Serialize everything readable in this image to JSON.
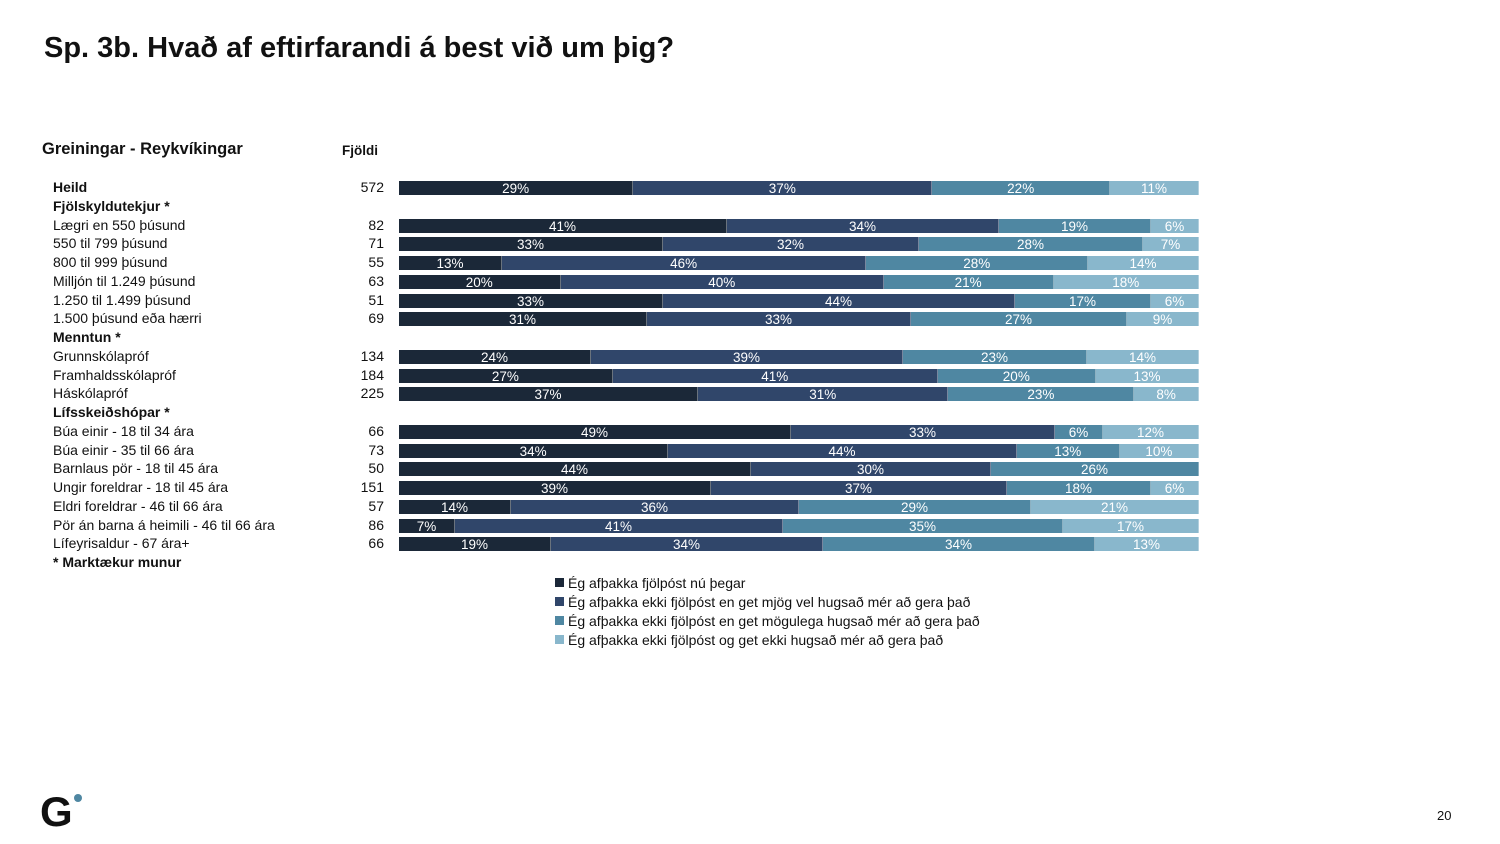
{
  "title": "Sp. 3b. Hvað af eftirfarandi á best við um þig?",
  "chart_data": {
    "type": "bar",
    "orientation": "horizontal-stacked-100",
    "subtitle": "Greiningar - Reykvíkingar",
    "count_header": "Fjöldi",
    "colors": [
      "#1b2838",
      "#30466a",
      "#4f87a2",
      "#89b7cc"
    ],
    "series": [
      {
        "name": "Ég afþakka fjölpóst nú þegar"
      },
      {
        "name": "Ég afþakka ekki fjölpóst en get mjög vel hugsað mér að gera það"
      },
      {
        "name": "Ég afþakka ekki fjölpóst en get mögulega hugsað mér að gera það"
      },
      {
        "name": "Ég afþakka ekki fjölpóst og get ekki hugsað mér að gera það"
      }
    ],
    "rows": [
      {
        "label": "Heild",
        "bold": true,
        "n": "572",
        "values": [
          29,
          37,
          22,
          11
        ]
      },
      {
        "label": "Fjölskyldutekjur *",
        "bold": true
      },
      {
        "label": "Lægri en 550 þúsund",
        "n": "82",
        "values": [
          41,
          34,
          19,
          6
        ]
      },
      {
        "label": "550 til 799 þúsund",
        "n": "71",
        "values": [
          33,
          32,
          28,
          7
        ]
      },
      {
        "label": "800 til 999 þúsund",
        "n": "55",
        "values": [
          13,
          46,
          28,
          14
        ]
      },
      {
        "label": "Milljón til 1.249 þúsund",
        "n": "63",
        "values": [
          20,
          40,
          21,
          18
        ]
      },
      {
        "label": "1.250 til 1.499 þúsund",
        "n": "51",
        "values": [
          33,
          44,
          17,
          6
        ]
      },
      {
        "label": "1.500 þúsund eða hærri",
        "n": "69",
        "values": [
          31,
          33,
          27,
          9
        ]
      },
      {
        "label": "Menntun *",
        "bold": true
      },
      {
        "label": "Grunnskólapróf",
        "n": "134",
        "values": [
          24,
          39,
          23,
          14
        ]
      },
      {
        "label": "Framhaldsskólapróf",
        "n": "184",
        "values": [
          27,
          41,
          20,
          13
        ]
      },
      {
        "label": "Háskólapróf",
        "n": "225",
        "values": [
          37,
          31,
          23,
          8
        ]
      },
      {
        "label": "Lífsskeiðshópar *",
        "bold": true
      },
      {
        "label": "Búa einir - 18 til 34 ára",
        "n": "66",
        "values": [
          49,
          33,
          6,
          12
        ]
      },
      {
        "label": "Búa einir - 35 til 66 ára",
        "n": "73",
        "values": [
          34,
          44,
          13,
          10
        ]
      },
      {
        "label": "Barnlaus pör - 18 til 45 ára",
        "n": "50",
        "values": [
          44,
          30,
          26,
          0
        ]
      },
      {
        "label": "Ungir foreldrar - 18 til 45 ára",
        "n": "151",
        "values": [
          39,
          37,
          18,
          6
        ]
      },
      {
        "label": "Eldri foreldrar - 46 til 66 ára",
        "n": "57",
        "values": [
          14,
          36,
          29,
          21
        ]
      },
      {
        "label": "Pör án barna á heimili - 46 til 66 ára",
        "n": "86",
        "values": [
          7,
          41,
          35,
          17
        ]
      },
      {
        "label": "Lífeyrisaldur - 67 ára+",
        "n": "66",
        "values": [
          19,
          34,
          34,
          13
        ]
      },
      {
        "label": "* Marktækur munur",
        "bold": true
      }
    ]
  },
  "page_number": "20",
  "logo_text": "G"
}
